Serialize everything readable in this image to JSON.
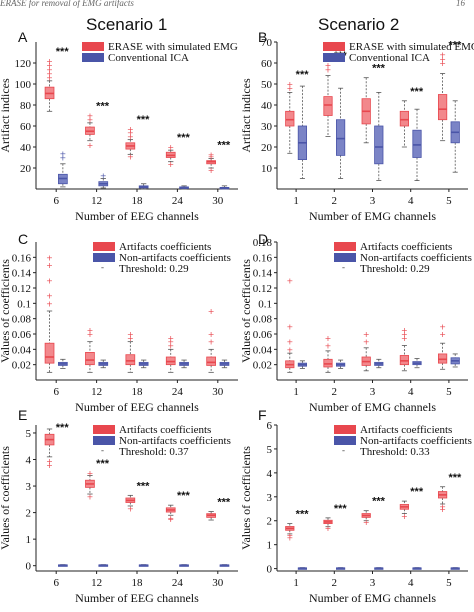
{
  "header": {
    "running_head": "ERASE for removal of EMG artifacts",
    "page_number": "16"
  },
  "columns": [
    "Scenario 1",
    "Scenario 2"
  ],
  "colors": {
    "red": "#e8474e",
    "red_light": "#f2888c",
    "blue": "#4a55a8",
    "blue_light": "#7b84c6"
  },
  "chart_data": [
    {
      "panel": "A",
      "type": "box",
      "scenario": "Scenario 1",
      "xlabel": "Number of EEG channels",
      "ylabel": "Artifact indices",
      "categories": [
        "6",
        "12",
        "18",
        "24",
        "30"
      ],
      "ylim": [
        0,
        140
      ],
      "yticks": [
        20,
        40,
        60,
        80,
        100,
        120
      ],
      "legend": [
        "ERASE with simulated EMG",
        "Conventional ICA"
      ],
      "significance": "***",
      "series": [
        {
          "name": "ERASE with simulated EMG",
          "color": "red",
          "boxes": [
            {
              "min": 74,
              "q1": 86,
              "med": 91,
              "q3": 97,
              "max": 103,
              "fliers": [
                106,
                110,
                114,
                118,
                122
              ]
            },
            {
              "min": 46,
              "q1": 52,
              "med": 55,
              "q3": 59,
              "max": 63,
              "fliers": [
                42,
                66,
                70
              ]
            },
            {
              "min": 33,
              "q1": 38,
              "med": 41,
              "q3": 44,
              "max": 47,
              "fliers": [
                50,
                54,
                57,
                31
              ]
            },
            {
              "min": 26,
              "q1": 30,
              "med": 32,
              "q3": 35,
              "max": 37,
              "fliers": [
                40,
                24
              ]
            },
            {
              "min": 20,
              "q1": 24,
              "med": 26,
              "q3": 27,
              "max": 29,
              "fliers": [
                31,
                33,
                18
              ]
            }
          ]
        },
        {
          "name": "Conventional ICA",
          "color": "blue",
          "boxes": [
            {
              "min": 2,
              "q1": 5,
              "med": 10,
              "q3": 14,
              "max": 24,
              "fliers": [
                30,
                34
              ]
            },
            {
              "min": 1,
              "q1": 3,
              "med": 5,
              "q3": 7,
              "max": 10,
              "fliers": [
                13
              ]
            },
            {
              "min": 0,
              "q1": 1,
              "med": 2,
              "q3": 3,
              "max": 5,
              "fliers": []
            },
            {
              "min": 0,
              "q1": 0.5,
              "med": 1,
              "q3": 2,
              "max": 3,
              "fliers": []
            },
            {
              "min": 0,
              "q1": 0.5,
              "med": 1,
              "q3": 1.5,
              "max": 3,
              "fliers": []
            }
          ]
        }
      ]
    },
    {
      "panel": "B",
      "type": "box",
      "scenario": "Scenario 2",
      "xlabel": "Number of EMG channels",
      "ylabel": "Artifact indices",
      "categories": [
        "1",
        "2",
        "3",
        "4",
        "5"
      ],
      "ylim": [
        0,
        70
      ],
      "yticks": [
        10,
        20,
        30,
        40,
        50,
        60,
        70
      ],
      "legend": [
        "ERASE with simulated EMG",
        "Conventional ICA"
      ],
      "significance": "***",
      "series": [
        {
          "name": "ERASE with simulated EMG",
          "color": "red",
          "boxes": [
            {
              "min": 17,
              "q1": 30,
              "med": 33,
              "q3": 37,
              "max": 46,
              "fliers": [
                48,
                50
              ]
            },
            {
              "min": 25,
              "q1": 35,
              "med": 40,
              "q3": 44,
              "max": 54,
              "fliers": [
                57,
                59
              ]
            },
            {
              "min": 22,
              "q1": 31,
              "med": 37,
              "q3": 43,
              "max": 53,
              "fliers": []
            },
            {
              "min": 20,
              "q1": 30,
              "med": 33,
              "q3": 37,
              "max": 42,
              "fliers": []
            },
            {
              "min": 23,
              "q1": 33,
              "med": 38,
              "q3": 45,
              "max": 55,
              "fliers": [
                60,
                62,
                64
              ]
            }
          ]
        },
        {
          "name": "Conventional ICA",
          "color": "blue",
          "boxes": [
            {
              "min": 5,
              "q1": 14,
              "med": 22,
              "q3": 30,
              "max": 49,
              "fliers": []
            },
            {
              "min": 5,
              "q1": 16,
              "med": 24,
              "q3": 33,
              "max": 48,
              "fliers": []
            },
            {
              "min": 4,
              "q1": 12,
              "med": 20,
              "q3": 30,
              "max": 46,
              "fliers": []
            },
            {
              "min": 4,
              "q1": 15,
              "med": 21,
              "q3": 28,
              "max": 38,
              "fliers": []
            },
            {
              "min": 8,
              "q1": 22,
              "med": 27,
              "q3": 32,
              "max": 42,
              "fliers": []
            }
          ]
        }
      ]
    },
    {
      "panel": "C",
      "type": "box",
      "scenario": "Scenario 1",
      "xlabel": "Number of EEG channels",
      "ylabel": "Values of coefficients",
      "categories": [
        "6",
        "12",
        "18",
        "24",
        "30"
      ],
      "ylim": [
        0,
        0.18
      ],
      "yticks": [
        0.02,
        0.04,
        0.06,
        0.08,
        0.1,
        0.12,
        0.14,
        0.16
      ],
      "legend": [
        "Artifacts coefficients",
        "Non-artifacts coefficients"
      ],
      "threshold_label": "Threshold: 0.29",
      "series": [
        {
          "name": "Artifacts coefficients",
          "color": "red",
          "boxes": [
            {
              "min": 0.01,
              "q1": 0.022,
              "med": 0.03,
              "q3": 0.048,
              "max": 0.09,
              "fliers": [
                0.1,
                0.11,
                0.13,
                0.15,
                0.16
              ]
            },
            {
              "min": 0.01,
              "q1": 0.02,
              "med": 0.026,
              "q3": 0.036,
              "max": 0.05,
              "fliers": [
                0.06,
                0.065
              ]
            },
            {
              "min": 0.01,
              "q1": 0.02,
              "med": 0.025,
              "q3": 0.033,
              "max": 0.05,
              "fliers": [
                0.055,
                0.06
              ]
            },
            {
              "min": 0.01,
              "q1": 0.02,
              "med": 0.024,
              "q3": 0.03,
              "max": 0.04,
              "fliers": [
                0.045,
                0.05,
                0.055
              ]
            },
            {
              "min": 0.01,
              "q1": 0.019,
              "med": 0.023,
              "q3": 0.03,
              "max": 0.04,
              "fliers": [
                0.05,
                0.06,
                0.09
              ]
            }
          ]
        },
        {
          "name": "Non-artifacts coefficients",
          "color": "blue",
          "boxes": [
            {
              "min": 0.015,
              "q1": 0.019,
              "med": 0.021,
              "q3": 0.023,
              "max": 0.027,
              "fliers": []
            },
            {
              "min": 0.016,
              "q1": 0.019,
              "med": 0.021,
              "q3": 0.023,
              "max": 0.026,
              "fliers": []
            },
            {
              "min": 0.016,
              "q1": 0.019,
              "med": 0.021,
              "q3": 0.023,
              "max": 0.026,
              "fliers": []
            },
            {
              "min": 0.016,
              "q1": 0.019,
              "med": 0.021,
              "q3": 0.023,
              "max": 0.026,
              "fliers": []
            },
            {
              "min": 0.016,
              "q1": 0.019,
              "med": 0.021,
              "q3": 0.023,
              "max": 0.026,
              "fliers": []
            }
          ]
        }
      ]
    },
    {
      "panel": "D",
      "type": "box",
      "scenario": "Scenario 2",
      "xlabel": "Number of EMG channels",
      "ylabel": "Values of coefficients",
      "categories": [
        "1",
        "2",
        "3",
        "4",
        "5"
      ],
      "ylim": [
        0,
        0.18
      ],
      "yticks": [
        0.02,
        0.04,
        0.06,
        0.08,
        0.1,
        0.12,
        0.14,
        0.16,
        0.18
      ],
      "legend": [
        "Artifacts coefficients",
        "Non-artifacts coefficients"
      ],
      "threshold_label": "Threshold: 0.29",
      "series": [
        {
          "name": "Artifacts coefficients",
          "color": "red",
          "boxes": [
            {
              "min": 0.01,
              "q1": 0.016,
              "med": 0.02,
              "q3": 0.025,
              "max": 0.035,
              "fliers": [
                0.04,
                0.05,
                0.07,
                0.13
              ]
            },
            {
              "min": 0.01,
              "q1": 0.017,
              "med": 0.021,
              "q3": 0.027,
              "max": 0.038,
              "fliers": [
                0.045,
                0.055
              ]
            },
            {
              "min": 0.012,
              "q1": 0.019,
              "med": 0.024,
              "q3": 0.03,
              "max": 0.042,
              "fliers": [
                0.05,
                0.06
              ]
            },
            {
              "min": 0.012,
              "q1": 0.02,
              "med": 0.025,
              "q3": 0.032,
              "max": 0.045,
              "fliers": [
                0.055,
                0.06,
                0.065
              ]
            },
            {
              "min": 0.014,
              "q1": 0.022,
              "med": 0.027,
              "q3": 0.034,
              "max": 0.048,
              "fliers": [
                0.06,
                0.07
              ]
            }
          ]
        },
        {
          "name": "Non-artifacts coefficients",
          "color": "blue",
          "boxes": [
            {
              "min": 0.015,
              "q1": 0.018,
              "med": 0.02,
              "q3": 0.022,
              "max": 0.025,
              "fliers": []
            },
            {
              "min": 0.015,
              "q1": 0.018,
              "med": 0.02,
              "q3": 0.022,
              "max": 0.026,
              "fliers": []
            },
            {
              "min": 0.016,
              "q1": 0.019,
              "med": 0.021,
              "q3": 0.023,
              "max": 0.027,
              "fliers": []
            },
            {
              "min": 0.016,
              "q1": 0.02,
              "med": 0.022,
              "q3": 0.024,
              "max": 0.028,
              "fliers": []
            },
            {
              "min": 0.017,
              "q1": 0.021,
              "med": 0.025,
              "q3": 0.029,
              "max": 0.034,
              "fliers": []
            }
          ]
        }
      ]
    },
    {
      "panel": "E",
      "type": "box",
      "scenario": "Scenario 1",
      "xlabel": "Number of EEG channels",
      "ylabel": "Values of coefficients",
      "categories": [
        "6",
        "12",
        "18",
        "24",
        "30"
      ],
      "ylim": [
        -0.2,
        5.3
      ],
      "yticks": [
        0,
        1,
        2,
        3,
        4,
        5
      ],
      "legend": [
        "Artifacts coefficients",
        "Non-artifacts coefficients"
      ],
      "threshold_label": "Threshold: 0.37",
      "significance": "***",
      "series": [
        {
          "name": "Artifacts coefficients",
          "color": "red",
          "boxes": [
            {
              "min": 4.1,
              "q1": 4.55,
              "med": 4.75,
              "q3": 4.95,
              "max": 5.15,
              "fliers": [
                3.95,
                3.8
              ]
            },
            {
              "min": 2.7,
              "q1": 2.95,
              "med": 3.08,
              "q3": 3.22,
              "max": 3.4,
              "fliers": [
                3.5,
                2.6
              ]
            },
            {
              "min": 2.25,
              "q1": 2.38,
              "med": 2.46,
              "q3": 2.55,
              "max": 2.65,
              "fliers": [
                2.15
              ]
            },
            {
              "min": 1.9,
              "q1": 2.02,
              "med": 2.1,
              "q3": 2.18,
              "max": 2.28,
              "fliers": [
                1.8,
                1.75
              ]
            },
            {
              "min": 1.72,
              "q1": 1.82,
              "med": 1.9,
              "q3": 1.96,
              "max": 2.04,
              "fliers": []
            }
          ]
        },
        {
          "name": "Non-artifacts coefficients",
          "color": "blue",
          "boxes": [
            {
              "min": 0.0,
              "q1": 0.01,
              "med": 0.02,
              "q3": 0.03,
              "max": 0.04,
              "fliers": []
            },
            {
              "min": 0.0,
              "q1": 0.01,
              "med": 0.02,
              "q3": 0.03,
              "max": 0.04,
              "fliers": []
            },
            {
              "min": 0.0,
              "q1": 0.01,
              "med": 0.02,
              "q3": 0.03,
              "max": 0.04,
              "fliers": []
            },
            {
              "min": 0.0,
              "q1": 0.01,
              "med": 0.02,
              "q3": 0.03,
              "max": 0.04,
              "fliers": []
            },
            {
              "min": 0.0,
              "q1": 0.01,
              "med": 0.02,
              "q3": 0.03,
              "max": 0.04,
              "fliers": []
            }
          ]
        }
      ]
    },
    {
      "panel": "F",
      "type": "box",
      "scenario": "Scenario 2",
      "xlabel": "Number of EMG channels",
      "ylabel": "Values of coefficients",
      "categories": [
        "1",
        "2",
        "3",
        "4",
        "5"
      ],
      "ylim": [
        -0.1,
        6
      ],
      "yticks": [
        0,
        1,
        2,
        3,
        4,
        5,
        6
      ],
      "legend": [
        "Artifacts coefficients",
        "Non-artifacts coefficients"
      ],
      "threshold_label": "Threshold: 0.33",
      "significance": "***",
      "series": [
        {
          "name": "Artifacts coefficients",
          "color": "red",
          "boxes": [
            {
              "min": 1.45,
              "q1": 1.6,
              "med": 1.68,
              "q3": 1.76,
              "max": 1.88,
              "fliers": [
                1.3,
                1.4
              ]
            },
            {
              "min": 1.75,
              "q1": 1.88,
              "med": 1.95,
              "q3": 2.02,
              "max": 2.12,
              "fliers": [
                1.7
              ]
            },
            {
              "min": 2.0,
              "q1": 2.14,
              "med": 2.22,
              "q3": 2.3,
              "max": 2.42,
              "fliers": [
                1.95
              ]
            },
            {
              "min": 2.3,
              "q1": 2.48,
              "med": 2.58,
              "q3": 2.68,
              "max": 2.82,
              "fliers": [
                2.2
              ]
            },
            {
              "min": 2.7,
              "q1": 2.95,
              "med": 3.08,
              "q3": 3.22,
              "max": 3.42,
              "fliers": [
                2.6,
                2.5
              ]
            }
          ]
        },
        {
          "name": "Non-artifacts coefficients",
          "color": "blue",
          "boxes": [
            {
              "min": 0.0,
              "q1": 0.01,
              "med": 0.02,
              "q3": 0.03,
              "max": 0.04,
              "fliers": []
            },
            {
              "min": 0.0,
              "q1": 0.01,
              "med": 0.02,
              "q3": 0.03,
              "max": 0.04,
              "fliers": []
            },
            {
              "min": 0.0,
              "q1": 0.01,
              "med": 0.02,
              "q3": 0.03,
              "max": 0.04,
              "fliers": []
            },
            {
              "min": 0.0,
              "q1": 0.01,
              "med": 0.02,
              "q3": 0.03,
              "max": 0.04,
              "fliers": []
            },
            {
              "min": 0.0,
              "q1": 0.01,
              "med": 0.02,
              "q3": 0.03,
              "max": 0.04,
              "fliers": []
            }
          ]
        }
      ]
    }
  ]
}
